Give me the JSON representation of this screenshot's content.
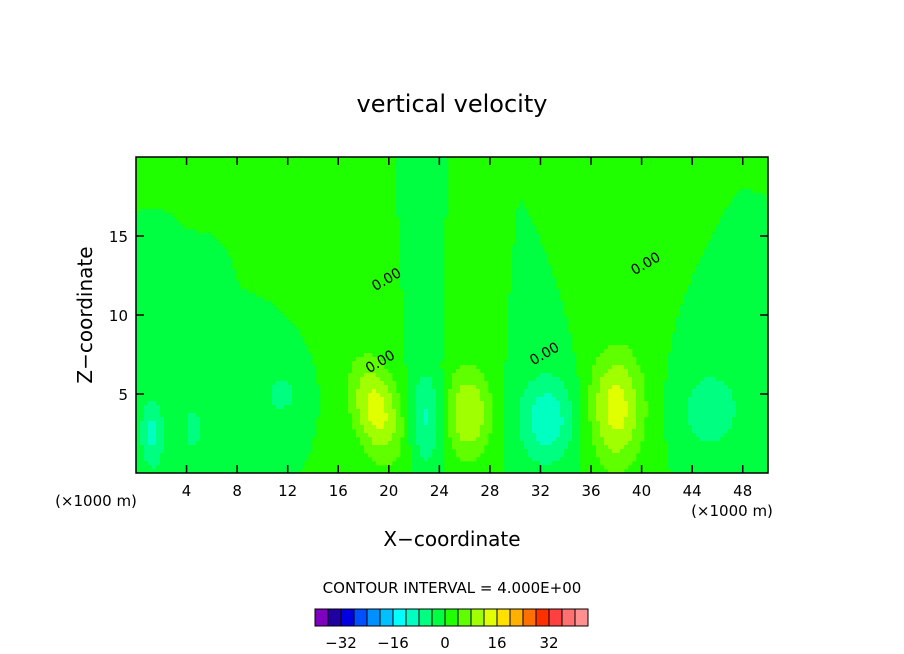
{
  "chart_data": {
    "type": "heatmap",
    "title": "vertical velocity",
    "xlabel": "X−coordinate",
    "ylabel": "Z−coordinate",
    "x_unit_left": "(×1000 m)",
    "x_unit_right": "(×1000 m)",
    "xlim": [
      0,
      50
    ],
    "ylim": [
      0,
      20
    ],
    "x_ticks": [
      4,
      8,
      12,
      16,
      20,
      24,
      28,
      32,
      36,
      40,
      44,
      48
    ],
    "y_ticks": [
      5,
      10,
      15
    ],
    "contour_interval_label": "CONTOUR INTERVAL = 4.000E+00",
    "contour_interval": 4,
    "contour_labels": [
      {
        "text": "0.00",
        "x": 20,
        "y": 12
      },
      {
        "text": "0.00",
        "x": 19.5,
        "y": 6.8
      },
      {
        "text": "0.00",
        "x": 32.5,
        "y": 7.3
      },
      {
        "text": "0.00",
        "x": 40.5,
        "y": 13
      }
    ],
    "features": [
      {
        "kind": "updraft",
        "x": 19,
        "z": 4,
        "peak": 14,
        "sx": 1.3,
        "sz": 2.3,
        "angle": -18
      },
      {
        "kind": "updraft",
        "x": 26.3,
        "z": 3.8,
        "peak": 12,
        "sx": 1.3,
        "sz": 2.1,
        "angle": 0
      },
      {
        "kind": "updraft",
        "x": 38,
        "z": 4.1,
        "peak": 14,
        "sx": 1.5,
        "sz": 2.6,
        "angle": 0
      },
      {
        "kind": "downdraft",
        "x": 23,
        "z": 3.5,
        "peak": -9,
        "sx": 0.9,
        "sz": 2.2,
        "angle": 0
      },
      {
        "kind": "downdraft",
        "x": 32.5,
        "z": 3.4,
        "peak": -11,
        "sx": 1.6,
        "sz": 2.0,
        "angle": 0
      },
      {
        "kind": "downdraft",
        "x": 45.5,
        "z": 4.0,
        "peak": -8,
        "sx": 1.6,
        "sz": 1.7,
        "angle": 0
      },
      {
        "kind": "downdraft",
        "x": 1.3,
        "z": 2.5,
        "peak": -9,
        "sx": 0.7,
        "sz": 1.7,
        "angle": 0
      },
      {
        "kind": "downdraft",
        "x": 11.5,
        "z": 5.0,
        "peak": -6,
        "sx": 1.0,
        "sz": 1.0,
        "angle": 0
      },
      {
        "kind": "downdraft",
        "x": 4.5,
        "z": 2.8,
        "peak": -5,
        "sx": 0.8,
        "sz": 1.5,
        "angle": 0
      }
    ],
    "colorbar": {
      "levels": [
        -40,
        -36,
        -32,
        -28,
        -24,
        -20,
        -16,
        -12,
        -8,
        -4,
        0,
        4,
        8,
        12,
        16,
        20,
        24,
        28,
        32,
        36,
        40
      ],
      "tick_labels": [
        "−32",
        "−16",
        "0",
        "16",
        "32"
      ],
      "tick_values": [
        -32,
        -16,
        0,
        16,
        32
      ],
      "colors": [
        "#8000c0",
        "#2000a0",
        "#0000e0",
        "#0050ff",
        "#0090ff",
        "#00c0ff",
        "#00ffff",
        "#00ffc0",
        "#00ff80",
        "#00ff40",
        "#20ff00",
        "#60ff00",
        "#a0ff00",
        "#e0ff00",
        "#ffe000",
        "#ffb000",
        "#ff7000",
        "#ff3000",
        "#ff4040",
        "#ff7070",
        "#ff9090"
      ]
    }
  }
}
